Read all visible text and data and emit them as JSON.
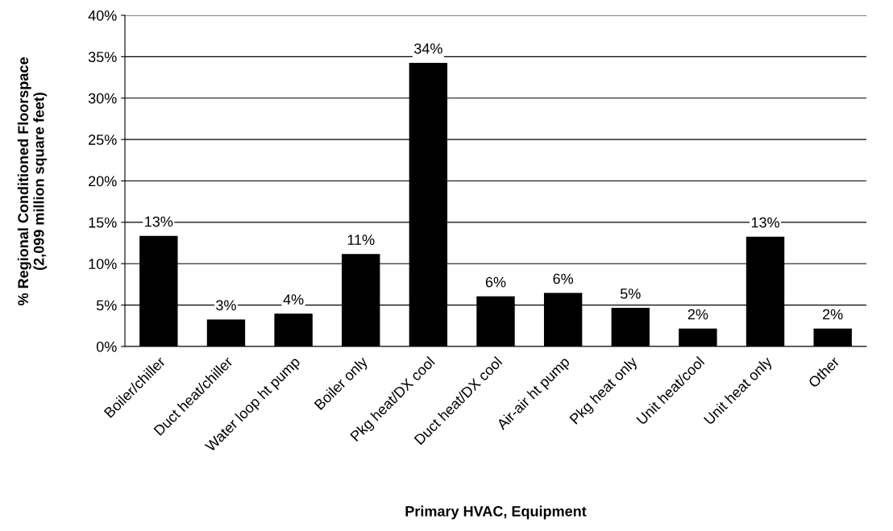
{
  "chart_data": {
    "type": "bar",
    "xlabel": "Primary HVAC, Equipment",
    "ylabel": "% Regional Conditioned Floorspace\n(2,099 million square feet)",
    "categories": [
      "Boiler/chiller",
      "Duct heat/chiller",
      "Water loop ht pump",
      "Boiler only",
      "Pkg heat/DX cool",
      "Duct heat/DX cool",
      "Air-air ht pump",
      "Pkg heat only",
      "Unit heat/cool",
      "Unit heat only",
      "Other"
    ],
    "values": [
      13.3,
      3.2,
      3.9,
      11.1,
      34.2,
      6.0,
      6.4,
      4.6,
      2.1,
      13.2,
      2.1
    ],
    "value_labels": [
      "13%",
      "3%",
      "4%",
      "11%",
      "34%",
      "6%",
      "6%",
      "5%",
      "2%",
      "13%",
      "2%"
    ],
    "color": "#000000",
    "ylim": [
      0,
      40
    ],
    "yticks": [
      {
        "value": 0,
        "label": "0%"
      },
      {
        "value": 5,
        "label": "5%"
      },
      {
        "value": 10,
        "label": "10%"
      },
      {
        "value": 15,
        "label": "15%"
      },
      {
        "value": 20,
        "label": "20%"
      },
      {
        "value": 25,
        "label": "25%"
      },
      {
        "value": 30,
        "label": "30%"
      },
      {
        "value": 35,
        "label": "35%"
      },
      {
        "value": 40,
        "label": "40%"
      }
    ],
    "grid": "y"
  }
}
